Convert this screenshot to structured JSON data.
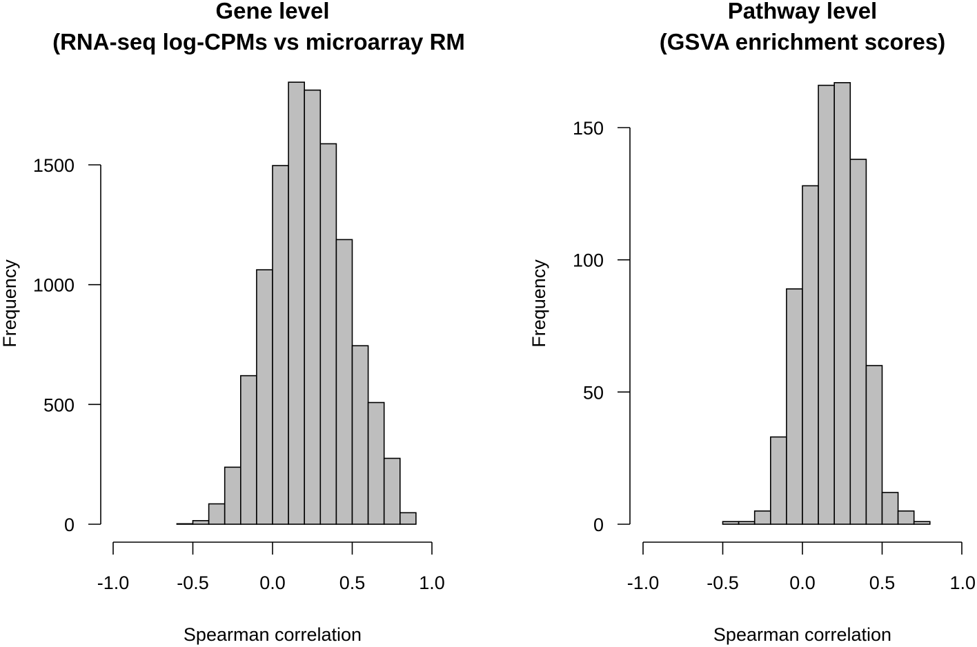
{
  "chart_data": [
    {
      "type": "bar",
      "title": "Gene level",
      "subtitle": "(RNA-seq log-CPMs vs microarray RM",
      "xlabel": "Spearman correlation",
      "ylabel": "Frequency",
      "xlim": [
        -1.0,
        1.0
      ],
      "ylim": [
        0,
        1500
      ],
      "x_ticks": [
        "-1.0",
        "-0.5",
        "0.0",
        "0.5",
        "1.0"
      ],
      "y_ticks": [
        "0",
        "500",
        "1000",
        "1500"
      ],
      "bin_edges": [
        -0.6,
        -0.5,
        -0.4,
        -0.3,
        -0.2,
        -0.1,
        0.0,
        0.1,
        0.2,
        0.3,
        0.4,
        0.5,
        0.6,
        0.7,
        0.8,
        0.9
      ],
      "values": [
        2,
        15,
        85,
        238,
        620,
        1062,
        1497,
        1845,
        1812,
        1588,
        1188,
        745,
        508,
        275,
        48
      ]
    },
    {
      "type": "bar",
      "title": "Pathway level",
      "subtitle": "(GSVA enrichment scores)",
      "xlabel": "Spearman correlation",
      "ylabel": "Frequency",
      "xlim": [
        -1.0,
        1.0
      ],
      "ylim": [
        0,
        150
      ],
      "x_ticks": [
        "-1.0",
        "-0.5",
        "0.0",
        "0.5",
        "1.0"
      ],
      "y_ticks": [
        "0",
        "50",
        "100",
        "150"
      ],
      "bin_edges": [
        -0.5,
        -0.4,
        -0.3,
        -0.2,
        -0.1,
        0.0,
        0.1,
        0.2,
        0.3,
        0.4,
        0.5,
        0.6,
        0.7,
        0.8
      ],
      "values": [
        1,
        1,
        5,
        33,
        89,
        128,
        166,
        167,
        138,
        60,
        12,
        5,
        1
      ]
    }
  ]
}
